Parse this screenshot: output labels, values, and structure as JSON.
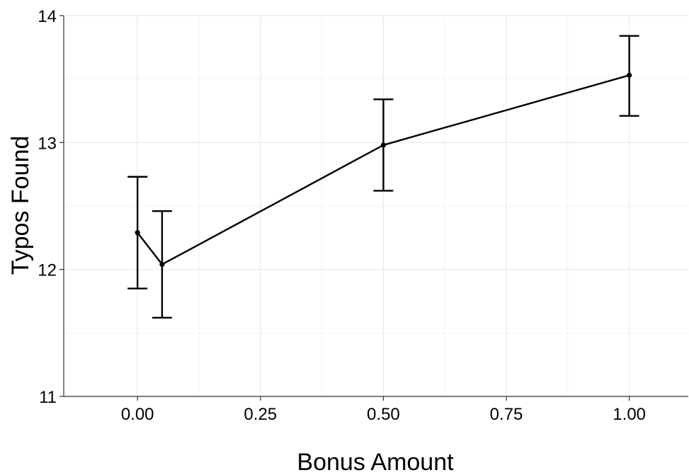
{
  "chart_data": {
    "type": "line",
    "title": "",
    "xlabel": "Bonus Amount",
    "ylabel": "Typos Found",
    "xlim": [
      -0.15,
      1.12
    ],
    "ylim": [
      11,
      14
    ],
    "x_ticks": [
      0.0,
      0.25,
      0.5,
      0.75,
      1.0
    ],
    "x_tick_labels": [
      "0.00",
      "0.25",
      "0.50",
      "0.75",
      "1.00"
    ],
    "y_ticks": [
      11,
      12,
      13,
      14
    ],
    "y_tick_labels": [
      "11",
      "12",
      "13",
      "14"
    ],
    "grid": true,
    "legend": "none",
    "series": [
      {
        "x": [
          0.0,
          0.05,
          0.5,
          1.0
        ],
        "y": [
          12.29,
          12.04,
          12.98,
          13.53
        ],
        "error_low": [
          11.85,
          11.62,
          12.62,
          13.21
        ],
        "error_high": [
          12.73,
          12.46,
          13.34,
          13.84
        ],
        "color": "#000000"
      }
    ]
  }
}
